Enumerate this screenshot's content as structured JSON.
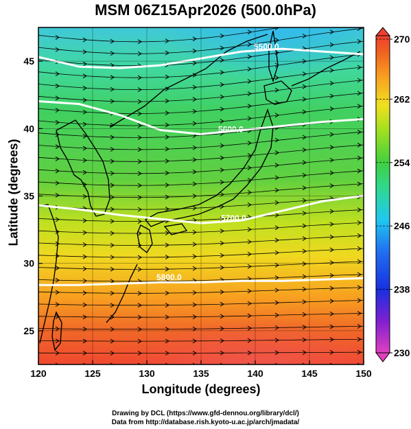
{
  "title": "MSM 06Z15Apr2026 (500.0hPa)",
  "xlabel": "Longitude (degrees)",
  "ylabel": "Latitude  (degrees)",
  "credits": [
    "Drawing by DCL (https://www.gfd-dennou.org/library/dcl/)",
    "Data from http://database.rish.kyoto-u.ac.jp/arch/jmadata/"
  ],
  "x_ticks": [
    "120",
    "125",
    "130",
    "135",
    "140",
    "145",
    "150"
  ],
  "y_ticks": [
    "45",
    "40",
    "35",
    "30",
    "25"
  ],
  "colorbar": {
    "ticks": [
      "270",
      "262",
      "254",
      "246",
      "238",
      "230"
    ],
    "range": [
      230,
      270
    ],
    "colors": [
      "#e040c0",
      "#7020d0",
      "#1030e0",
      "#2070f0",
      "#20c8f0",
      "#30d890",
      "#40d040",
      "#a0e020",
      "#f0e020",
      "#f8a020",
      "#f06020",
      "#f04030"
    ]
  },
  "contours": [
    {
      "label": "5500.0",
      "lat": 45.0
    },
    {
      "label": "5600.0",
      "lat": 40.5
    },
    {
      "label": "5700.0",
      "lat": 34.0
    },
    {
      "label": "5800.0",
      "lat": 28.5
    }
  ],
  "map_extent": {
    "lon": [
      120,
      150
    ],
    "lat": [
      22.5,
      47.5
    ]
  },
  "chart_data": {
    "type": "heatmap",
    "title": "MSM 06Z15Apr2026 (500.0hPa)",
    "xlabel": "Longitude (degrees)",
    "ylabel": "Latitude  (degrees)",
    "xlim": [
      120,
      150
    ],
    "ylim": [
      22.5,
      47.5
    ],
    "color_range": [
      230,
      270
    ],
    "temperature_by_lat": [
      {
        "lat": 47,
        "value": 247
      },
      {
        "lat": 44,
        "value": 251
      },
      {
        "lat": 40,
        "value": 254
      },
      {
        "lat": 36,
        "value": 257
      },
      {
        "lat": 32,
        "value": 260
      },
      {
        "lat": 28,
        "value": 263
      },
      {
        "lat": 24,
        "value": 266
      }
    ],
    "height_contours": [
      5500.0,
      5600.0,
      5700.0,
      5800.0
    ],
    "grid": true
  }
}
